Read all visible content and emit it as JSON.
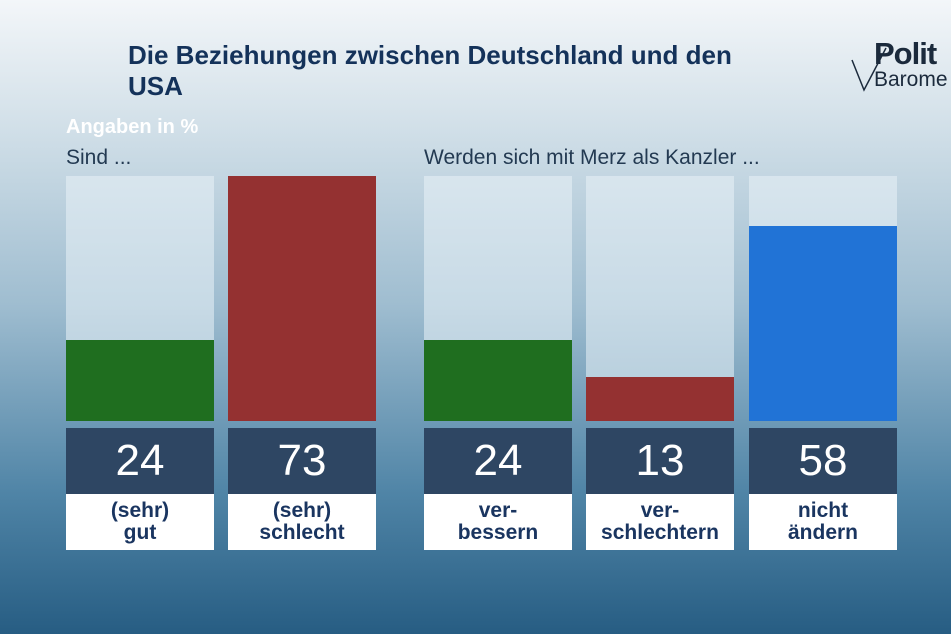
{
  "title": "Die Beziehungen zwischen Deutschland und den USA",
  "logo": {
    "line1": "Polit",
    "line2": "Barome"
  },
  "unit_note": "Angaben in %",
  "chart_data": [
    {
      "type": "bar",
      "subtitle": "Sind ...",
      "categories": [
        "(sehr)\ngut",
        "(sehr)\nschlecht"
      ],
      "values": [
        24,
        73
      ],
      "colors": [
        "#1f6e1f",
        "#943131"
      ],
      "ylim": [
        0,
        73
      ]
    },
    {
      "type": "bar",
      "subtitle": "Werden sich mit Merz als Kanzler ...",
      "categories": [
        "ver-\nbessern",
        "ver-\nschlechtern",
        "nicht\nändern"
      ],
      "values": [
        24,
        13,
        58
      ],
      "colors": [
        "#1f6e1f",
        "#943131",
        "#2173d6"
      ],
      "ylim": [
        0,
        73
      ]
    }
  ]
}
